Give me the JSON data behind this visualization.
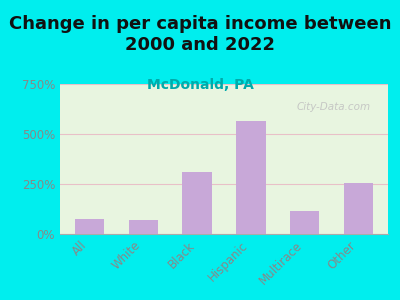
{
  "title": "Change in per capita income between\n2000 and 2022",
  "subtitle": "McDonald, PA",
  "categories": [
    "All",
    "White",
    "Black",
    "Hispanic",
    "Multirace",
    "Other"
  ],
  "values": [
    75,
    70,
    310,
    565,
    115,
    255
  ],
  "bar_color": "#c8a8d8",
  "title_fontsize": 13,
  "subtitle_fontsize": 10,
  "subtitle_color": "#00aaaa",
  "tick_color": "#888888",
  "background_outer": "#00eeee",
  "background_inner_top": "#e8f5e0",
  "background_inner_bottom": "#d8e8d0",
  "ylim": [
    0,
    750
  ],
  "yticks": [
    0,
    250,
    500,
    750
  ],
  "ytick_labels": [
    "0%",
    "250%",
    "500%",
    "750%"
  ],
  "watermark": "City-Data.com",
  "watermark_color": "#c0c0c0",
  "grid_color": "#e8c0c8",
  "axis_line_color": "#aaaaaa"
}
